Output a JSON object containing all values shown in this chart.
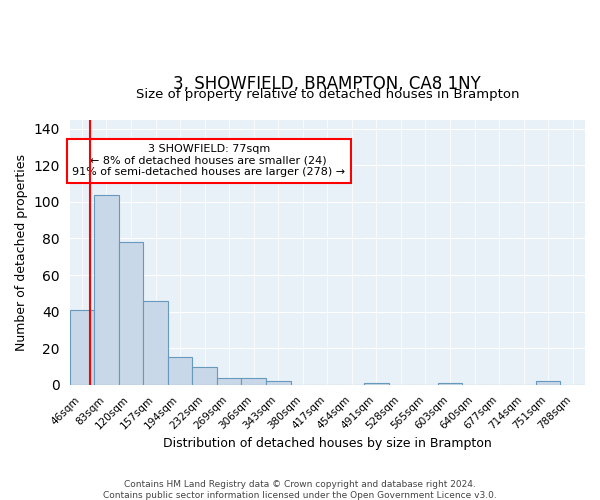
{
  "title": "3, SHOWFIELD, BRAMPTON, CA8 1NY",
  "subtitle": "Size of property relative to detached houses in Brampton",
  "xlabel": "Distribution of detached houses by size in Brampton",
  "ylabel": "Number of detached properties",
  "bar_color": "#c8d8e8",
  "bar_edge_color": "#6699bb",
  "background_color": "#e8f0f8",
  "categories": [
    "46sqm",
    "83sqm",
    "120sqm",
    "157sqm",
    "194sqm",
    "232sqm",
    "269sqm",
    "306sqm",
    "343sqm",
    "380sqm",
    "417sqm",
    "454sqm",
    "491sqm",
    "528sqm",
    "565sqm",
    "603sqm",
    "640sqm",
    "677sqm",
    "714sqm",
    "751sqm",
    "788sqm"
  ],
  "values": [
    41,
    104,
    78,
    46,
    15,
    10,
    4,
    4,
    2,
    0,
    0,
    0,
    1,
    0,
    0,
    1,
    0,
    0,
    0,
    2,
    0
  ],
  "ylim": [
    0,
    145
  ],
  "yticks": [
    0,
    20,
    40,
    60,
    80,
    100,
    120,
    140
  ],
  "property_label": "3 SHOWFIELD: 77sqm",
  "annotation_line1": "← 8% of detached houses are smaller (24)",
  "annotation_line2": "91% of semi-detached houses are larger (278) →",
  "footer": "Contains HM Land Registry data © Crown copyright and database right 2024.\nContains public sector information licensed under the Open Government Licence v3.0."
}
